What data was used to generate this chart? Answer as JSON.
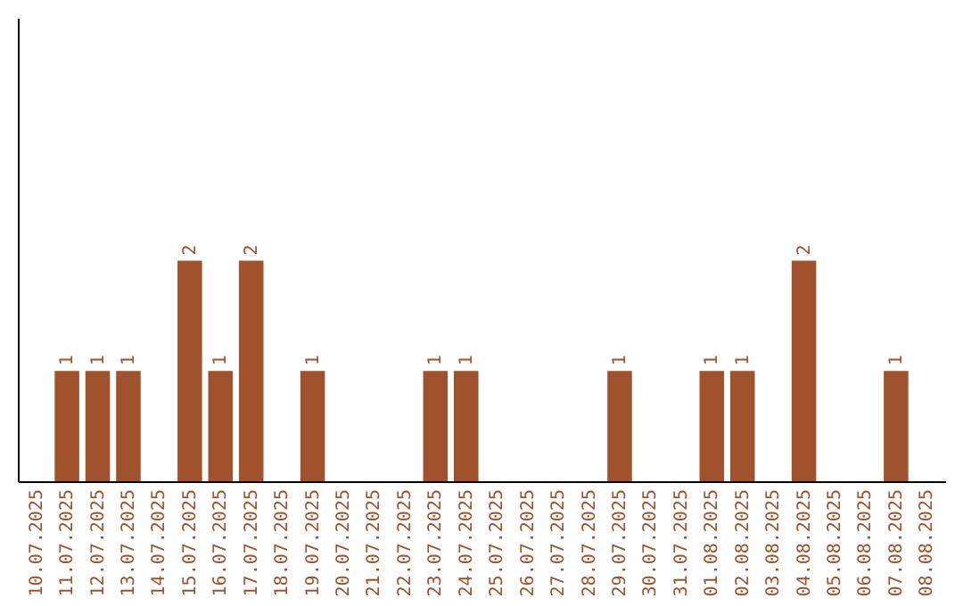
{
  "chart_data": {
    "type": "bar",
    "categories": [
      "10.07.2025",
      "11.07.2025",
      "12.07.2025",
      "13.07.2025",
      "14.07.2025",
      "15.07.2025",
      "16.07.2025",
      "17.07.2025",
      "18.07.2025",
      "19.07.2025",
      "20.07.2025",
      "21.07.2025",
      "22.07.2025",
      "23.07.2025",
      "24.07.2025",
      "25.07.2025",
      "26.07.2025",
      "27.07.2025",
      "28.07.2025",
      "29.07.2025",
      "30.07.2025",
      "31.07.2025",
      "01.08.2025",
      "02.08.2025",
      "03.08.2025",
      "04.08.2025",
      "05.08.2025",
      "06.08.2025",
      "07.08.2025",
      "08.08.2025"
    ],
    "values": [
      0,
      1,
      1,
      1,
      0,
      2,
      1,
      2,
      0,
      1,
      0,
      0,
      0,
      1,
      1,
      0,
      0,
      0,
      0,
      1,
      0,
      0,
      1,
      1,
      0,
      2,
      0,
      0,
      1,
      0
    ],
    "value_labels": [
      null,
      "1",
      "1",
      "1",
      null,
      "2",
      "1",
      "2",
      null,
      "1",
      null,
      null,
      null,
      "1",
      "1",
      null,
      null,
      null,
      null,
      "1",
      null,
      null,
      "1",
      "1",
      null,
      "2",
      null,
      null,
      "1",
      null
    ],
    "color": "#a0522d",
    "ylim": [
      0,
      4.2
    ]
  }
}
